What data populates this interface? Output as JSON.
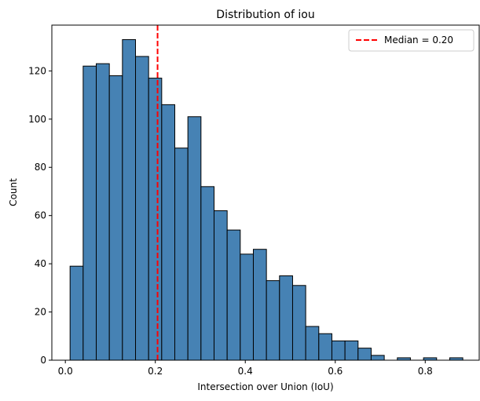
{
  "chart_data": {
    "type": "bar",
    "title": "Distribution of iou",
    "xlabel": "Intersection over Union (IoU)",
    "ylabel": "Count",
    "xlim": [
      -0.03,
      0.92
    ],
    "ylim": [
      0,
      139
    ],
    "xticks": [
      0.0,
      0.2,
      0.4,
      0.6,
      0.8
    ],
    "xtick_labels": [
      "0.0",
      "0.2",
      "0.4",
      "0.6",
      "0.8"
    ],
    "yticks": [
      0,
      20,
      40,
      60,
      80,
      100,
      120
    ],
    "ytick_labels": [
      "0",
      "20",
      "40",
      "60",
      "80",
      "100",
      "120"
    ],
    "bins": {
      "start": 0.0105,
      "width": 0.0291,
      "counts": [
        39,
        122,
        123,
        118,
        133,
        126,
        117,
        106,
        88,
        101,
        72,
        62,
        54,
        44,
        46,
        33,
        35,
        31,
        14,
        11,
        8,
        8,
        5,
        2,
        0,
        1,
        0,
        1,
        0,
        1
      ]
    },
    "median": 0.205,
    "legend": {
      "label": "Median = 0.20",
      "placement": "upper-right"
    },
    "colors": {
      "bar": "#4682b4",
      "edge": "#000000",
      "median": "#ff0000"
    },
    "grid": false
  }
}
